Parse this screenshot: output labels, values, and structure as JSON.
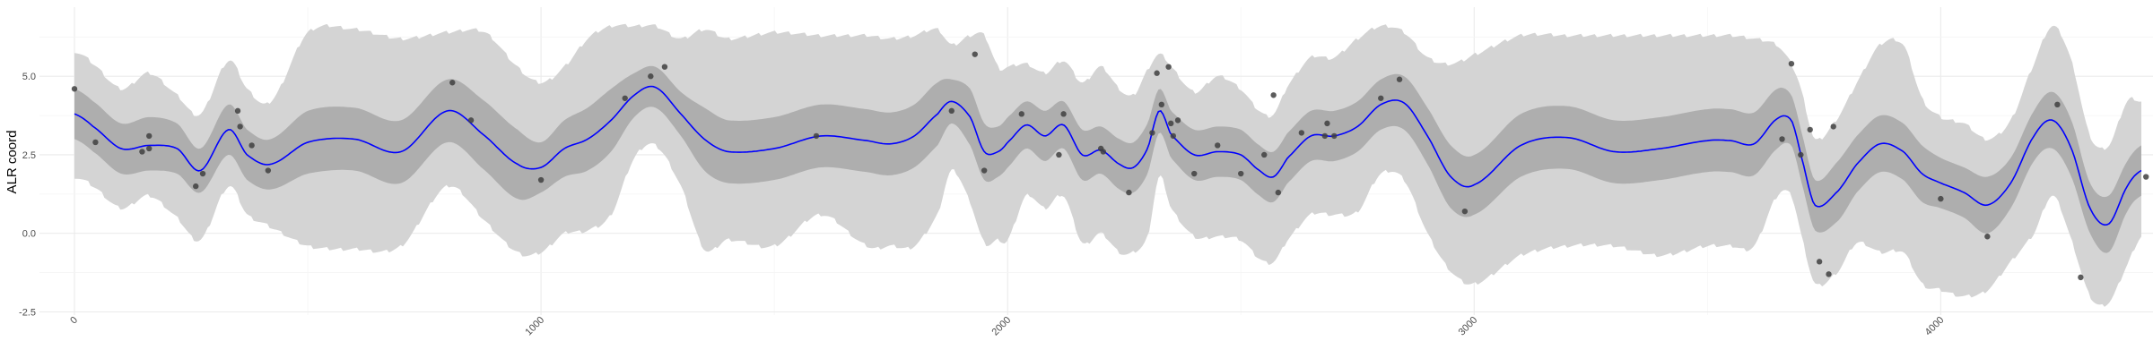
{
  "chart_data": {
    "type": "line",
    "xlabel": "",
    "ylabel": "ALR coord",
    "xlim": [
      -75,
      4455
    ],
    "ylim": [
      -2.6,
      7.2
    ],
    "x_ticks": [
      0,
      1000,
      2000,
      3000,
      4000
    ],
    "x_tick_labels": [
      "0",
      "1000",
      "2000",
      "3000",
      "4000"
    ],
    "y_ticks": [
      -2.5,
      0.0,
      2.5,
      5.0
    ],
    "y_tick_labels": [
      "-2.5",
      "0.0",
      "2.5",
      "5.0"
    ],
    "grid": true,
    "colors": {
      "outer_band": "#d4d4d4",
      "inner_band": "#aeaeae",
      "mean_line": "#0000ff",
      "points": "#3f3f3f"
    },
    "mean": {
      "x": [
        0,
        40,
        100,
        160,
        220,
        270,
        330,
        370,
        420,
        500,
        600,
        700,
        800,
        880,
        950,
        1000,
        1050,
        1100,
        1150,
        1200,
        1245,
        1300,
        1350,
        1400,
        1500,
        1600,
        1700,
        1750,
        1800,
        1850,
        1880,
        1920,
        1950,
        1980,
        2000,
        2040,
        2080,
        2120,
        2160,
        2200,
        2240,
        2270,
        2300,
        2325,
        2350,
        2400,
        2450,
        2500,
        2540,
        2570,
        2600,
        2650,
        2700,
        2750,
        2800,
        2850,
        2900,
        2950,
        3000,
        3100,
        3200,
        3300,
        3400,
        3500,
        3550,
        3600,
        3650,
        3680,
        3700,
        3730,
        3780,
        3820,
        3870,
        3920,
        3960,
        4000,
        4050,
        4100,
        4150,
        4200,
        4240,
        4280,
        4320,
        4360,
        4400,
        4430
      ],
      "y": [
        3.8,
        3.4,
        2.7,
        2.8,
        2.7,
        2.0,
        3.3,
        2.5,
        2.2,
        2.9,
        3.0,
        2.6,
        3.9,
        3.1,
        2.2,
        2.1,
        2.7,
        3.0,
        3.6,
        4.4,
        4.65,
        3.8,
        3.0,
        2.6,
        2.7,
        3.1,
        2.95,
        2.85,
        3.1,
        3.8,
        4.2,
        3.7,
        2.6,
        2.6,
        2.9,
        3.45,
        3.1,
        3.45,
        2.5,
        2.65,
        2.2,
        2.1,
        2.7,
        3.9,
        3.15,
        2.5,
        2.6,
        2.5,
        2.0,
        1.8,
        2.4,
        3.1,
        3.1,
        3.4,
        4.1,
        4.15,
        3.1,
        1.8,
        1.55,
        2.8,
        3.05,
        2.6,
        2.7,
        2.95,
        2.95,
        2.85,
        3.65,
        3.6,
        2.5,
        0.9,
        1.35,
        2.2,
        2.85,
        2.6,
        1.9,
        1.6,
        1.3,
        0.9,
        1.6,
        3.1,
        3.6,
        2.7,
        0.8,
        0.3,
        1.5,
        2.0
      ]
    },
    "inner_band": {
      "x": [
        0,
        40,
        100,
        160,
        220,
        270,
        330,
        370,
        420,
        500,
        600,
        700,
        800,
        880,
        950,
        1000,
        1050,
        1100,
        1150,
        1200,
        1245,
        1300,
        1350,
        1400,
        1500,
        1600,
        1700,
        1750,
        1800,
        1850,
        1880,
        1920,
        1950,
        1980,
        2000,
        2040,
        2080,
        2120,
        2160,
        2200,
        2240,
        2270,
        2300,
        2325,
        2350,
        2400,
        2450,
        2500,
        2540,
        2570,
        2600,
        2650,
        2700,
        2750,
        2800,
        2850,
        2900,
        2950,
        3000,
        3100,
        3200,
        3300,
        3400,
        3500,
        3550,
        3600,
        3650,
        3680,
        3700,
        3730,
        3780,
        3820,
        3870,
        3920,
        3960,
        4000,
        4050,
        4100,
        4150,
        4200,
        4240,
        4280,
        4320,
        4360,
        4400,
        4430
      ],
      "upper": [
        4.6,
        4.2,
        3.5,
        3.7,
        3.5,
        2.7,
        4.1,
        3.3,
        3.0,
        3.9,
        4.0,
        3.6,
        4.9,
        4.2,
        3.3,
        2.9,
        3.6,
        4.0,
        4.6,
        5.1,
        5.3,
        4.5,
        4.0,
        3.6,
        3.7,
        4.1,
        3.95,
        3.85,
        4.1,
        4.8,
        4.9,
        4.6,
        3.5,
        3.4,
        3.7,
        4.2,
        3.9,
        4.2,
        3.3,
        3.4,
        3.0,
        2.9,
        3.5,
        4.6,
        3.9,
        3.3,
        3.4,
        3.3,
        2.8,
        2.6,
        3.2,
        3.9,
        3.9,
        4.2,
        4.9,
        5.0,
        4.0,
        2.8,
        2.5,
        3.8,
        4.05,
        3.6,
        3.7,
        3.95,
        3.95,
        3.85,
        4.6,
        4.4,
        3.3,
        1.7,
        2.3,
        3.1,
        3.75,
        3.5,
        2.8,
        2.4,
        2.1,
        1.8,
        2.4,
        3.9,
        4.5,
        3.6,
        1.6,
        1.2,
        2.3,
        2.8
      ],
      "lower": [
        3.0,
        2.6,
        1.9,
        2.0,
        1.9,
        1.3,
        2.5,
        1.7,
        1.4,
        1.9,
        2.0,
        1.6,
        2.9,
        2.0,
        1.1,
        1.3,
        1.8,
        2.0,
        2.6,
        3.7,
        4.0,
        3.1,
        2.0,
        1.6,
        1.7,
        2.1,
        1.95,
        1.85,
        2.1,
        2.8,
        3.5,
        2.8,
        1.7,
        1.8,
        2.1,
        2.7,
        2.3,
        2.7,
        1.7,
        1.9,
        1.4,
        1.3,
        1.9,
        3.2,
        2.4,
        1.7,
        1.8,
        1.7,
        1.2,
        1.0,
        1.6,
        2.3,
        2.3,
        2.6,
        3.3,
        3.3,
        2.2,
        0.8,
        0.6,
        1.8,
        2.05,
        1.6,
        1.7,
        1.95,
        1.95,
        1.85,
        2.7,
        2.8,
        1.7,
        0.1,
        0.4,
        1.3,
        1.95,
        1.7,
        1.0,
        0.8,
        0.5,
        0.0,
        0.8,
        2.3,
        2.7,
        1.8,
        0.0,
        -0.6,
        0.7,
        1.2
      ]
    },
    "outer_band": {
      "x": [
        0,
        40,
        100,
        160,
        220,
        270,
        330,
        370,
        420,
        500,
        600,
        700,
        800,
        880,
        950,
        1000,
        1050,
        1100,
        1150,
        1200,
        1245,
        1300,
        1350,
        1400,
        1500,
        1600,
        1700,
        1750,
        1800,
        1850,
        1880,
        1920,
        1950,
        1980,
        2000,
        2040,
        2080,
        2120,
        2160,
        2200,
        2240,
        2270,
        2300,
        2325,
        2350,
        2400,
        2450,
        2500,
        2540,
        2570,
        2600,
        2650,
        2700,
        2750,
        2800,
        2850,
        2900,
        2950,
        3000,
        3100,
        3200,
        3300,
        3400,
        3500,
        3550,
        3600,
        3650,
        3680,
        3700,
        3730,
        3780,
        3820,
        3870,
        3920,
        3960,
        4000,
        4050,
        4100,
        4150,
        4200,
        4240,
        4280,
        4320,
        4360,
        4400,
        4430
      ],
      "upper": [
        5.8,
        5.4,
        4.6,
        5.1,
        4.4,
        3.8,
        5.5,
        4.6,
        4.2,
        6.4,
        6.5,
        6.2,
        6.4,
        6.4,
        5.3,
        4.8,
        5.3,
        6.2,
        6.6,
        6.6,
        6.6,
        6.2,
        6.5,
        6.2,
        6.4,
        6.3,
        6.3,
        6.2,
        6.3,
        6.5,
        6.0,
        6.3,
        6.3,
        5.3,
        5.3,
        5.4,
        5.1,
        5.5,
        4.8,
        5.3,
        4.6,
        4.4,
        5.2,
        5.7,
        5.3,
        4.5,
        5.0,
        4.6,
        3.9,
        3.8,
        4.7,
        5.6,
        5.6,
        6.2,
        6.6,
        6.4,
        5.6,
        5.4,
        5.7,
        6.3,
        6.3,
        6.3,
        6.3,
        6.3,
        6.3,
        6.2,
        6.0,
        5.4,
        4.6,
        3.0,
        3.7,
        4.8,
        6.0,
        6.0,
        4.3,
        3.7,
        3.5,
        3.0,
        3.6,
        5.4,
        6.6,
        5.5,
        3.1,
        2.8,
        4.2,
        4.2
      ],
      "lower": [
        1.8,
        1.5,
        0.8,
        1.2,
        0.5,
        -0.2,
        1.5,
        0.6,
        0.2,
        -0.4,
        -0.5,
        -0.4,
        1.5,
        0.4,
        -0.6,
        -0.6,
        0.0,
        0.1,
        0.6,
        2.4,
        2.8,
        1.5,
        -0.5,
        -0.2,
        -0.4,
        0.6,
        -0.4,
        -0.4,
        -0.4,
        0.6,
        2.0,
        1.0,
        -0.3,
        -0.2,
        -0.2,
        1.2,
        0.8,
        1.2,
        -0.3,
        0.0,
        -0.6,
        -0.6,
        -0.1,
        1.8,
        0.8,
        -0.1,
        -0.1,
        -0.2,
        -0.8,
        -0.9,
        -0.2,
        0.6,
        0.6,
        0.7,
        1.9,
        1.7,
        0.0,
        -1.2,
        -1.6,
        -0.7,
        -0.4,
        -0.4,
        -0.7,
        -0.4,
        -0.4,
        -0.4,
        1.2,
        1.2,
        0.0,
        -1.6,
        -1.2,
        -0.3,
        -0.6,
        -0.6,
        -1.6,
        -1.8,
        -2.0,
        -1.8,
        -0.9,
        0.0,
        1.2,
        -0.2,
        -2.0,
        -2.2,
        -1.0,
        -0.1
      ]
    },
    "points": {
      "x": [
        0,
        45,
        145,
        160,
        160,
        260,
        275,
        350,
        355,
        380,
        415,
        810,
        850,
        1000,
        1180,
        1235,
        1265,
        1590,
        1880,
        1930,
        1950,
        2030,
        2110,
        2120,
        2200,
        2205,
        2260,
        2310,
        2320,
        2330,
        2345,
        2350,
        2355,
        2365,
        2400,
        2450,
        2500,
        2550,
        2570,
        2580,
        2630,
        2680,
        2685,
        2700,
        2800,
        2840,
        2980,
        3660,
        3680,
        3700,
        3720,
        3740,
        3760,
        3770,
        4000,
        4100,
        4250,
        4300,
        4440
      ],
      "y": [
        4.6,
        2.9,
        2.6,
        2.7,
        3.1,
        1.5,
        1.9,
        3.9,
        3.4,
        2.8,
        2.0,
        4.8,
        3.6,
        1.7,
        4.3,
        5.0,
        5.3,
        3.1,
        3.9,
        5.7,
        2.0,
        3.8,
        2.5,
        3.8,
        2.7,
        2.6,
        1.3,
        3.2,
        5.1,
        4.1,
        5.3,
        3.5,
        3.1,
        3.6,
        1.9,
        2.8,
        1.9,
        2.5,
        4.4,
        1.3,
        3.2,
        3.1,
        3.5,
        3.1,
        4.3,
        4.9,
        0.7,
        3.0,
        5.4,
        2.5,
        3.3,
        -0.9,
        -1.3,
        3.4,
        1.1,
        -0.1,
        4.1,
        -1.4,
        1.8
      ]
    }
  }
}
